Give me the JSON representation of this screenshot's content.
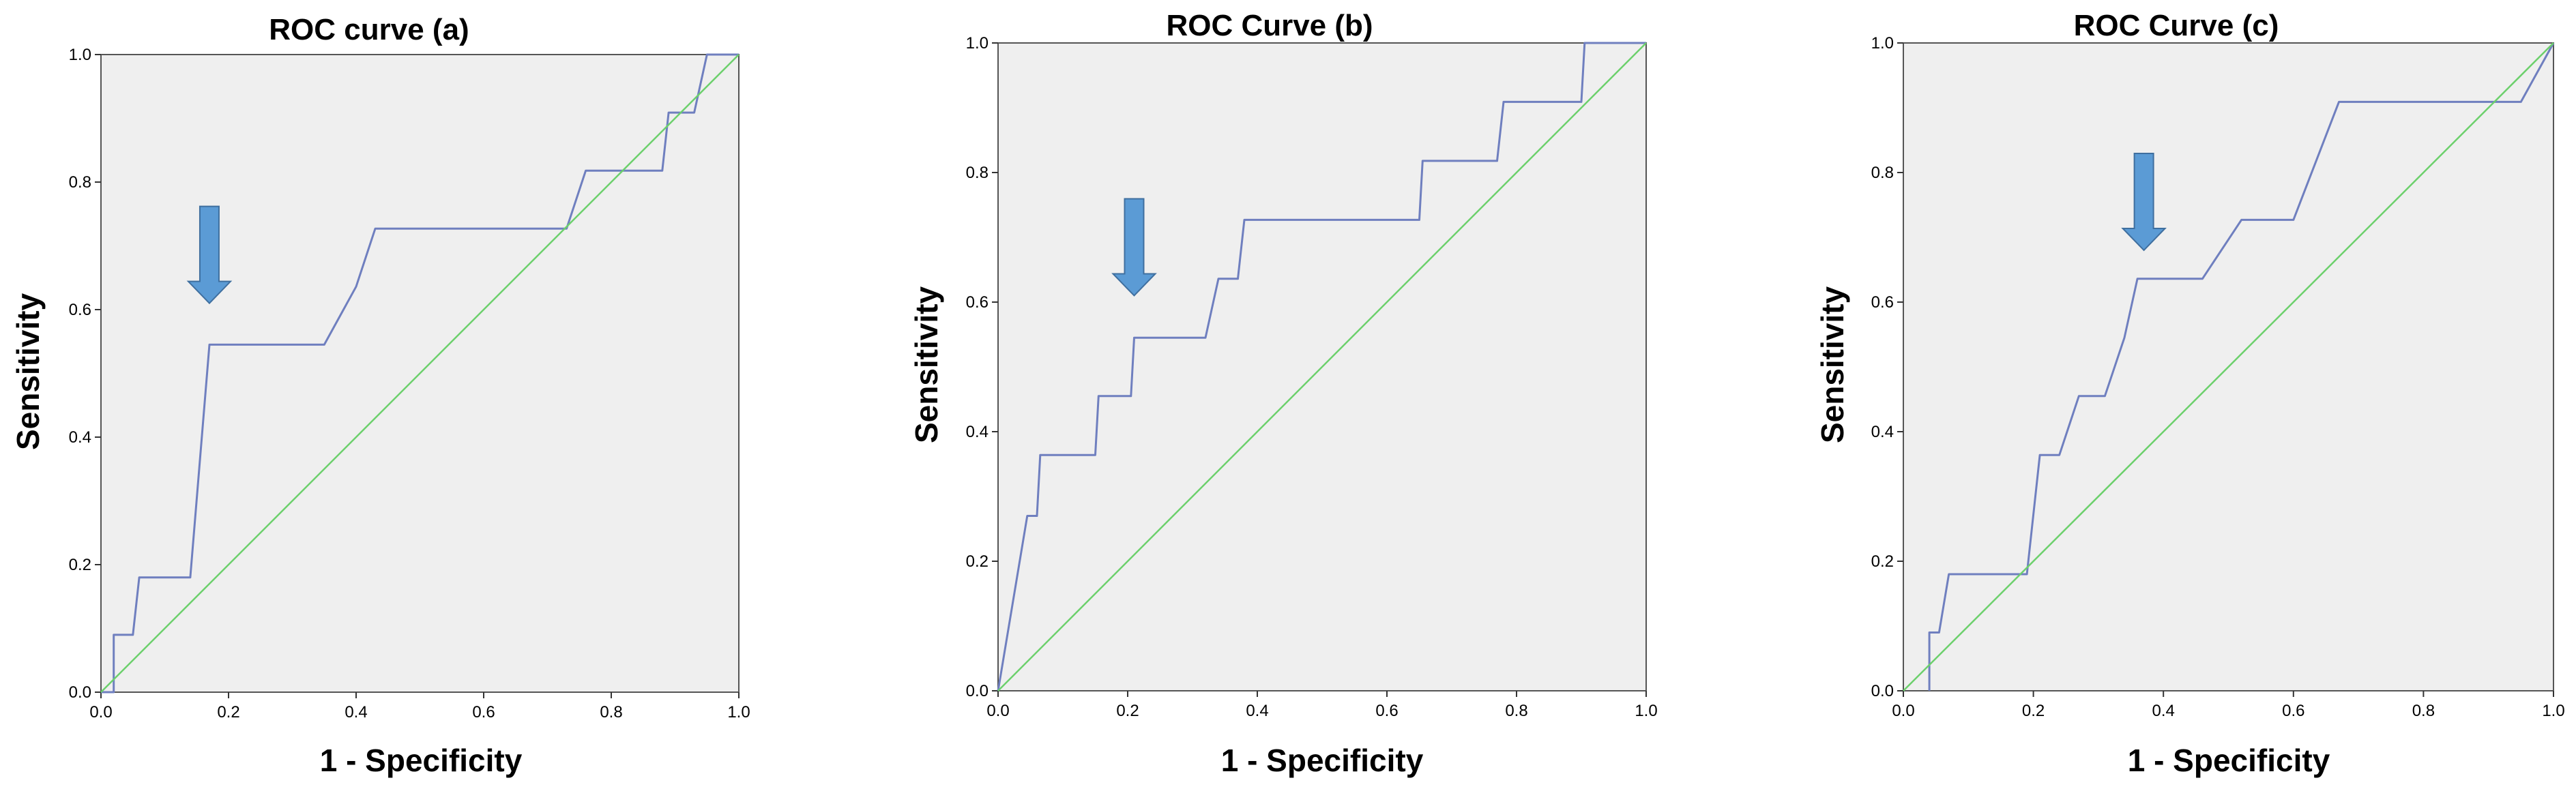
{
  "colors": {
    "plot_background": "#efefef",
    "frame": "#555555",
    "roc_line": "#6f7fbf",
    "reference_line": "#6cd06c",
    "arrow_fill": "#5b9bd5",
    "arrow_stroke": "#3f6f9f"
  },
  "chart_data": [
    {
      "type": "line",
      "title": "ROC curve (a)",
      "xlabel": "1 - Specificity",
      "ylabel": "Sensitivity",
      "xlim": [
        0,
        1
      ],
      "ylim": [
        0,
        1
      ],
      "xticks": [
        "0.0",
        "0.2",
        "0.4",
        "0.6",
        "0.8",
        "1.0"
      ],
      "yticks": [
        "0.0",
        "0.2",
        "0.4",
        "0.6",
        "0.8",
        "1.0"
      ],
      "grid": false,
      "arrow_tip": [
        0.17,
        0.61
      ],
      "series": [
        {
          "name": "ROC",
          "x": [
            0.0,
            0.02,
            0.02,
            0.05,
            0.06,
            0.14,
            0.17,
            0.35,
            0.4,
            0.43,
            0.73,
            0.76,
            0.88,
            0.89,
            0.93,
            0.95,
            1.0
          ],
          "y": [
            0.0,
            0.0,
            0.09,
            0.09,
            0.18,
            0.18,
            0.545,
            0.545,
            0.636,
            0.727,
            0.727,
            0.818,
            0.818,
            0.909,
            0.909,
            1.0,
            1.0
          ]
        },
        {
          "name": "Reference Line",
          "x": [
            0,
            1
          ],
          "y": [
            0,
            1
          ]
        }
      ]
    },
    {
      "type": "line",
      "title": "ROC Curve (b)",
      "xlabel": "1 - Specificity",
      "ylabel": "Sensitivity",
      "xlim": [
        0,
        1
      ],
      "ylim": [
        0,
        1
      ],
      "xticks": [
        "0.0",
        "0.2",
        "0.4",
        "0.6",
        "0.8",
        "1.0"
      ],
      "yticks": [
        "0.0",
        "0.2",
        "0.4",
        "0.6",
        "0.8",
        "1.0"
      ],
      "grid": false,
      "arrow_tip": [
        0.21,
        0.61
      ],
      "series": [
        {
          "name": "ROC",
          "x": [
            0.0,
            0.045,
            0.06,
            0.065,
            0.15,
            0.155,
            0.205,
            0.21,
            0.32,
            0.34,
            0.37,
            0.38,
            0.65,
            0.655,
            0.77,
            0.78,
            0.9,
            0.905,
            1.0
          ],
          "y": [
            0.0,
            0.27,
            0.27,
            0.364,
            0.364,
            0.455,
            0.455,
            0.545,
            0.545,
            0.636,
            0.636,
            0.727,
            0.727,
            0.818,
            0.818,
            0.909,
            0.909,
            1.0,
            1.0
          ]
        },
        {
          "name": "Reference Line",
          "x": [
            0,
            1
          ],
          "y": [
            0,
            1
          ]
        }
      ]
    },
    {
      "type": "line",
      "title": "ROC Curve (c)",
      "xlabel": "1 - Specificity",
      "ylabel": "Sensitivity",
      "xlim": [
        0,
        1
      ],
      "ylim": [
        0,
        1
      ],
      "xticks": [
        "0.0",
        "0.2",
        "0.4",
        "0.6",
        "0.8",
        "1.0"
      ],
      "yticks": [
        "0.0",
        "0.2",
        "0.4",
        "0.6",
        "0.8",
        "1.0"
      ],
      "grid": false,
      "arrow_tip": [
        0.37,
        0.68
      ],
      "series": [
        {
          "name": "ROC",
          "x": [
            0.04,
            0.04,
            0.055,
            0.07,
            0.19,
            0.21,
            0.24,
            0.27,
            0.31,
            0.34,
            0.36,
            0.39,
            0.46,
            0.52,
            0.6,
            0.67,
            0.95,
            1.0
          ],
          "y": [
            0.0,
            0.09,
            0.09,
            0.18,
            0.18,
            0.364,
            0.364,
            0.455,
            0.455,
            0.545,
            0.636,
            0.636,
            0.636,
            0.727,
            0.727,
            0.909,
            0.909,
            1.0
          ]
        },
        {
          "name": "Reference Line",
          "x": [
            0,
            1
          ],
          "y": [
            0,
            1
          ]
        }
      ]
    }
  ]
}
